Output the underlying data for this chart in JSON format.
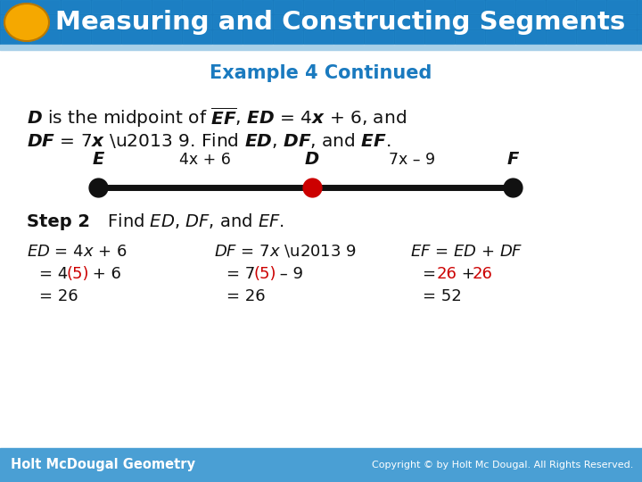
{
  "title": "Measuring and Constructing Segments",
  "subtitle": "Example 4 Continued",
  "header_bg": "#1a7abf",
  "header_text_color": "#ffffff",
  "subtitle_color": "#1a7abf",
  "gold_ellipse_color": "#f5a800",
  "gold_ellipse_shadow": "#b87800",
  "body_bg": "#ffffff",
  "footer_bg": "#4a9fd4",
  "footer_text_left": "Holt McDougal Geometry",
  "footer_text_right": "Copyright © by Holt Mc Dougal. All Rights Reserved.",
  "segment_E": "E",
  "segment_D": "D",
  "segment_F": "F",
  "segment_ED_label": "4x + 6",
  "segment_DF_label": "7x – 9",
  "red_color": "#cc0000",
  "dark_text": "#111111",
  "line_color": "#111111",
  "dot_E_color": "#111111",
  "dot_D_color": "#cc0000",
  "dot_F_color": "#111111"
}
